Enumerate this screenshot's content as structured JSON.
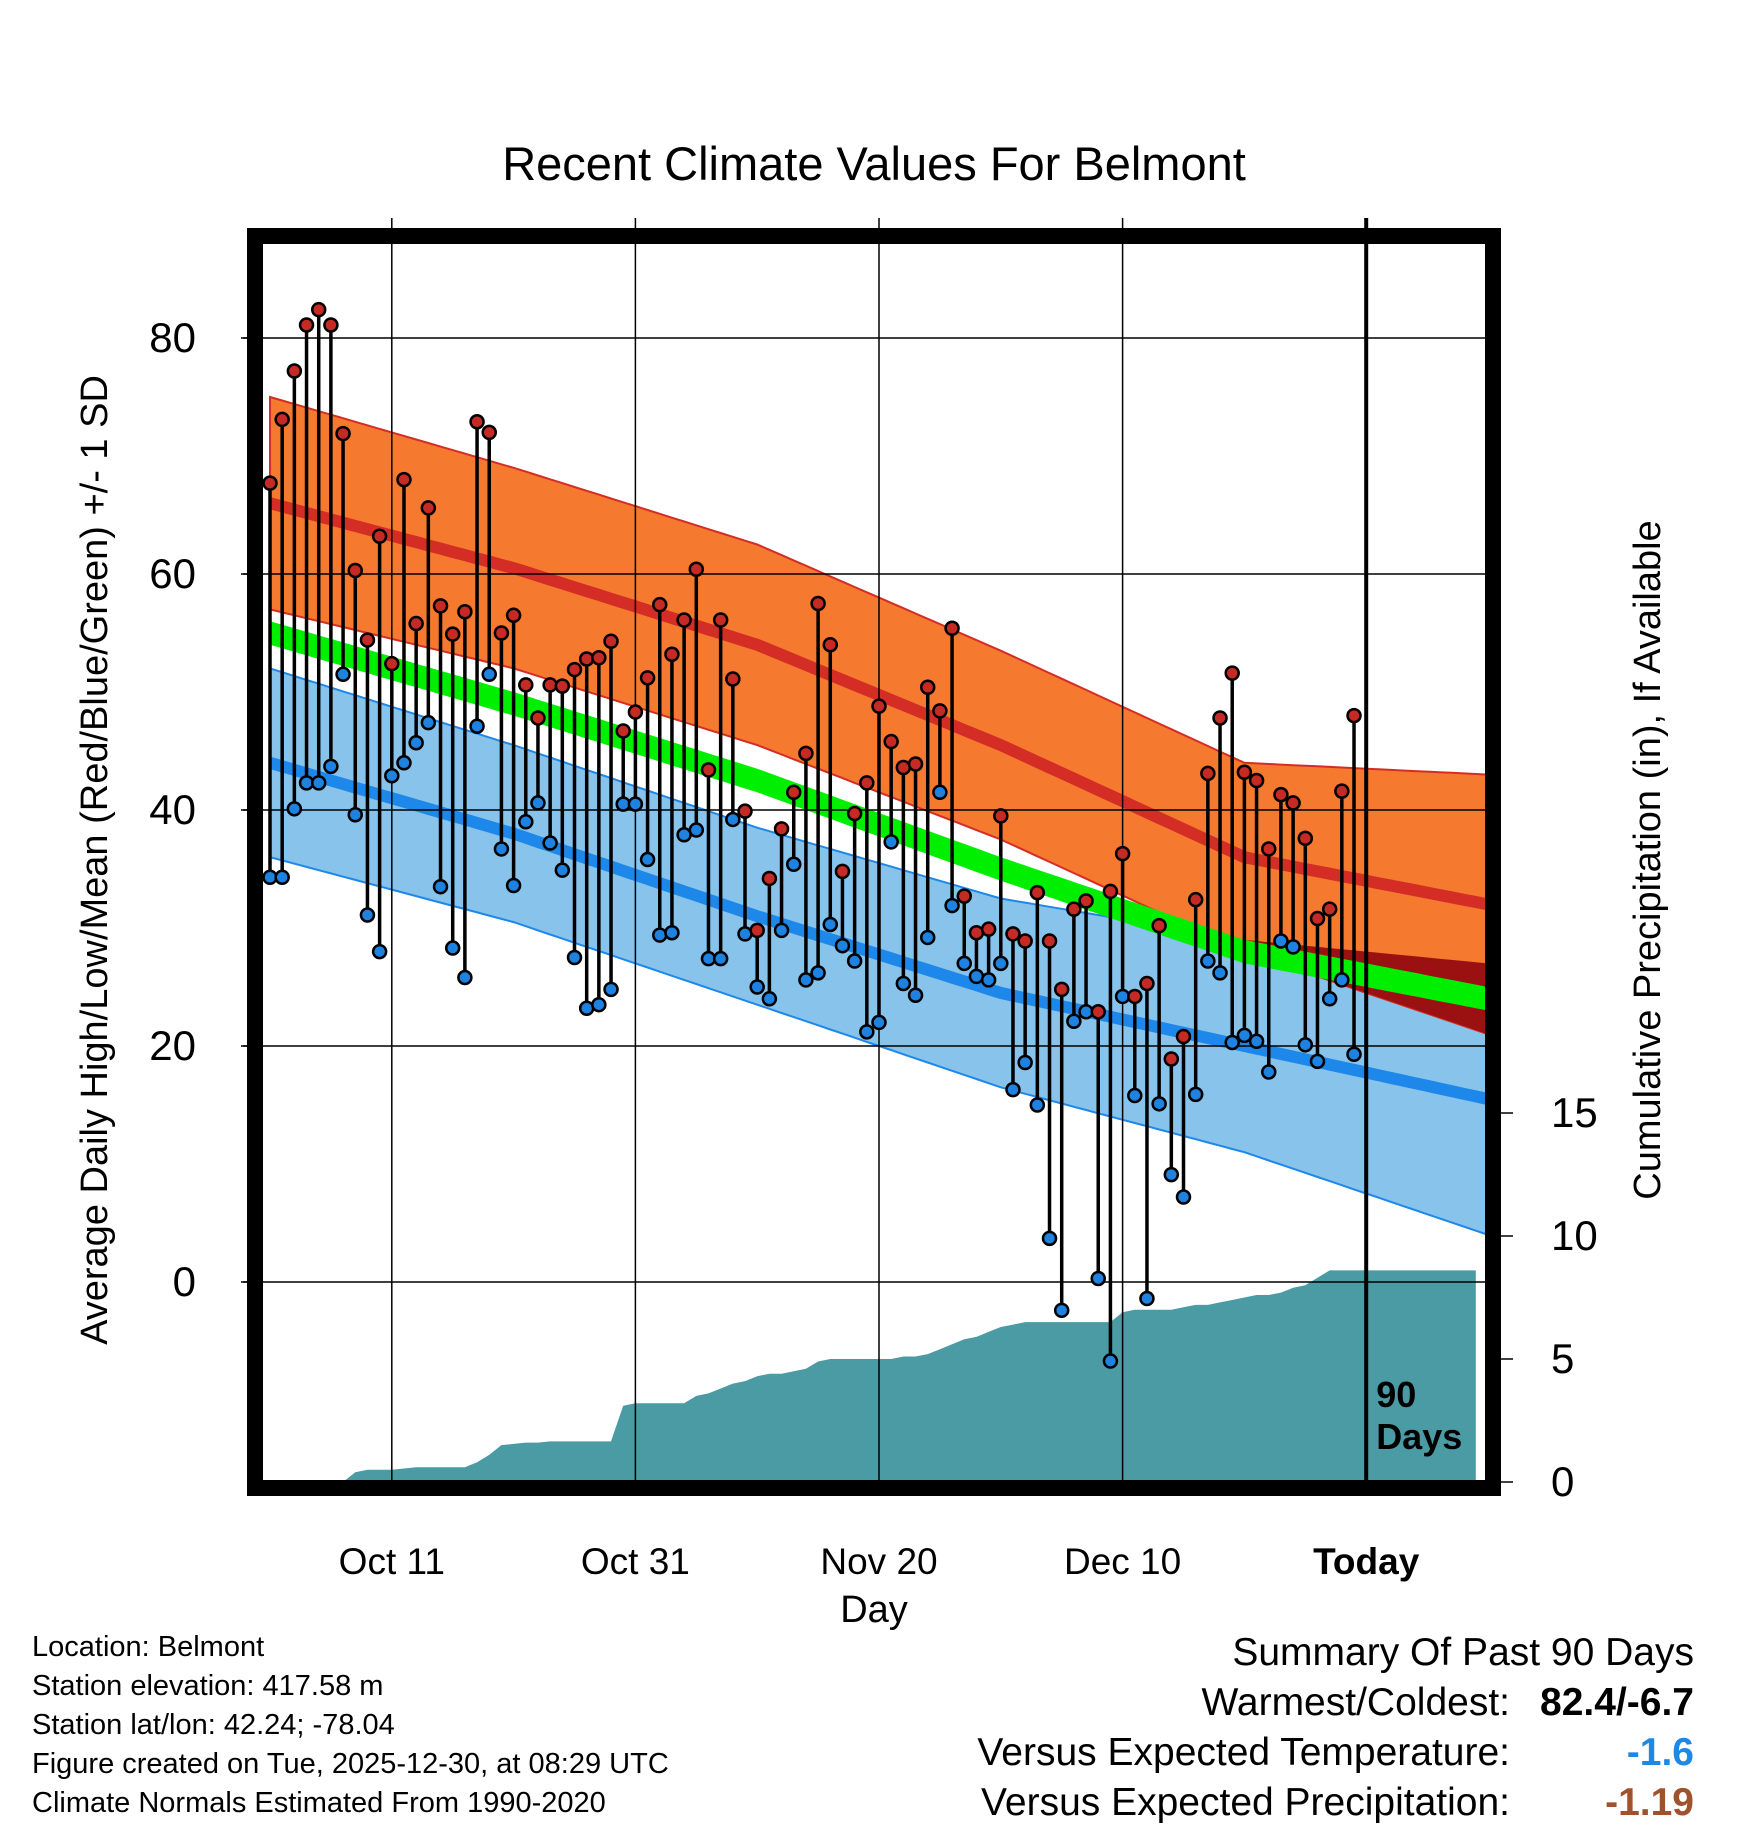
{
  "title": "Recent Climate Values For Belmont",
  "chart_data": {
    "type": "line",
    "title": "Recent Climate Values For Belmont",
    "xlabel": "Day",
    "ylabel_left": "Average Daily High/Low/Mean (Red/Blue/Green) +/- 1 SD",
    "ylabel_right": "Cumulative Precipitation (in), If Available",
    "x_tick_labels": [
      "Oct 11",
      "Oct 31",
      "Nov 20",
      "Dec 10",
      "Today"
    ],
    "x_tick_days": [
      10,
      30,
      50,
      70,
      90
    ],
    "y_left_ticks": [
      0,
      20,
      40,
      60,
      80
    ],
    "y_right_ticks": [
      0,
      5,
      10,
      15
    ],
    "xlim_days": [
      0,
      100
    ],
    "ylim_left": [
      -16,
      88
    ],
    "today_label": "90\nDays",
    "grid": true,
    "colors": {
      "high_band": "#f5792e",
      "high_mean": "#d42d26",
      "low_band": "#87c3ea",
      "low_mean": "#1e88ea",
      "mean_band": "#00ee00",
      "overlap": "#9b1010",
      "precip": "#4a9ba4",
      "max_dot": "#c62a25",
      "min_dot": "#1e82e0"
    },
    "normals": {
      "days": [
        0,
        20,
        40,
        60,
        80,
        100
      ],
      "high_mean": [
        66,
        60.5,
        54,
        45.5,
        36,
        32
      ],
      "high_sd": [
        9,
        8.5,
        8.5,
        8,
        8,
        11
      ],
      "low_mean": [
        44,
        38,
        31,
        24.5,
        20,
        15.5
      ],
      "low_sd": [
        8,
        7.5,
        7.5,
        8,
        9,
        11.5
      ],
      "mean_mean": [
        55,
        49,
        42.5,
        35,
        28,
        24
      ],
      "mean_sd": [
        1,
        1,
        1,
        1,
        1,
        1
      ]
    },
    "series": [
      {
        "name": "Daily High",
        "days": [
          0,
          1,
          2,
          3,
          4,
          5,
          6,
          7,
          8,
          9,
          10,
          11,
          12,
          13,
          14,
          15,
          16,
          17,
          18,
          19,
          20,
          21,
          22,
          23,
          24,
          25,
          26,
          27,
          28,
          29,
          30,
          31,
          32,
          33,
          34,
          35,
          36,
          37,
          38,
          39,
          40,
          41,
          42,
          43,
          44,
          45,
          46,
          47,
          48,
          49,
          50,
          51,
          52,
          53,
          54,
          55,
          56,
          57,
          58,
          59,
          60,
          61,
          62,
          63,
          64,
          65,
          66,
          67,
          68,
          69,
          70,
          71,
          72,
          73,
          74,
          75,
          76,
          77,
          78,
          79,
          80,
          81,
          82,
          83,
          84,
          85,
          86,
          87,
          88,
          89
        ],
        "values": [
          67.7,
          73.1,
          77.2,
          81.1,
          82.4,
          81.1,
          71.9,
          60.3,
          54.4,
          63.2,
          52.4,
          68.0,
          55.8,
          65.6,
          57.3,
          54.9,
          56.8,
          72.9,
          72.0,
          55.0,
          56.5,
          50.6,
          47.8,
          50.6,
          50.5,
          51.9,
          52.8,
          52.9,
          54.3,
          46.7,
          48.3,
          51.2,
          57.4,
          53.2,
          56.1,
          60.4,
          43.4,
          56.1,
          51.1,
          39.9,
          29.8,
          34.2,
          38.4,
          41.5,
          44.8,
          57.5,
          54.0,
          34.8,
          39.7,
          42.3,
          48.8,
          45.8,
          43.6,
          43.9,
          50.4,
          48.4,
          55.4,
          32.7,
          29.6,
          29.9,
          39.5,
          29.5,
          28.9,
          33.0,
          28.9,
          24.8,
          31.6,
          32.3,
          22.9,
          33.1,
          36.3,
          24.2,
          25.3,
          30.2,
          18.9,
          20.8,
          32.4,
          43.1,
          47.8,
          51.6,
          43.2,
          42.5,
          36.7,
          41.3,
          40.6,
          37.6,
          30.8,
          31.6,
          41.6,
          48.0
        ]
      },
      {
        "name": "Daily Low",
        "days": [
          0,
          1,
          2,
          3,
          4,
          5,
          6,
          7,
          8,
          9,
          10,
          11,
          12,
          13,
          14,
          15,
          16,
          17,
          18,
          19,
          20,
          21,
          22,
          23,
          24,
          25,
          26,
          27,
          28,
          29,
          30,
          31,
          32,
          33,
          34,
          35,
          36,
          37,
          38,
          39,
          40,
          41,
          42,
          43,
          44,
          45,
          46,
          47,
          48,
          49,
          50,
          51,
          52,
          53,
          54,
          55,
          56,
          57,
          58,
          59,
          60,
          61,
          62,
          63,
          64,
          65,
          66,
          67,
          68,
          69,
          70,
          71,
          72,
          73,
          74,
          75,
          76,
          77,
          78,
          79,
          80,
          81,
          82,
          83,
          84,
          85,
          86,
          87,
          88,
          89
        ],
        "values": [
          34.3,
          34.3,
          40.1,
          42.3,
          42.3,
          43.7,
          51.5,
          39.6,
          31.1,
          28.0,
          42.9,
          44.0,
          45.7,
          47.4,
          33.5,
          28.3,
          25.8,
          47.1,
          51.5,
          36.7,
          33.6,
          39.0,
          40.6,
          37.2,
          34.9,
          27.5,
          23.2,
          23.5,
          24.8,
          40.5,
          40.5,
          35.8,
          29.4,
          29.6,
          37.9,
          38.3,
          27.4,
          27.4,
          39.2,
          29.5,
          25.0,
          24.0,
          29.8,
          35.4,
          25.6,
          26.2,
          30.3,
          28.5,
          27.2,
          21.2,
          22.0,
          37.3,
          25.3,
          24.3,
          29.2,
          41.5,
          31.9,
          27.0,
          25.9,
          25.6,
          27.0,
          16.3,
          18.6,
          15.0,
          3.7,
          -2.4,
          22.1,
          22.9,
          0.3,
          -6.7,
          24.2,
          15.8,
          -1.4,
          15.1,
          9.1,
          7.2,
          15.9,
          27.2,
          26.2,
          20.3,
          20.9,
          20.4,
          17.8,
          28.9,
          28.4,
          20.1,
          18.7,
          24.0,
          25.6,
          19.3
        ]
      },
      {
        "name": "Cumulative Precipitation",
        "days": [
          6,
          7,
          8,
          9,
          10,
          11,
          12,
          13,
          14,
          15,
          16,
          17,
          18,
          19,
          20,
          21,
          22,
          23,
          24,
          25,
          26,
          27,
          28,
          29,
          30,
          31,
          32,
          33,
          34,
          35,
          36,
          37,
          38,
          39,
          40,
          41,
          42,
          43,
          44,
          45,
          46,
          47,
          48,
          49,
          50,
          51,
          52,
          53,
          54,
          55,
          56,
          57,
          58,
          59,
          60,
          61,
          62,
          63,
          64,
          65,
          66,
          67,
          68,
          69,
          70,
          71,
          72,
          73,
          74,
          75,
          76,
          77,
          78,
          79,
          80,
          81,
          82,
          83,
          84,
          85,
          86,
          87,
          88,
          89,
          90,
          99
        ],
        "values": [
          0,
          0.4,
          0.5,
          0.5,
          0.5,
          0.55,
          0.6,
          0.6,
          0.6,
          0.6,
          0.6,
          0.8,
          1.1,
          1.5,
          1.55,
          1.6,
          1.6,
          1.65,
          1.65,
          1.65,
          1.65,
          1.65,
          1.65,
          3.1,
          3.2,
          3.2,
          3.2,
          3.2,
          3.2,
          3.5,
          3.6,
          3.8,
          4.0,
          4.1,
          4.3,
          4.4,
          4.4,
          4.5,
          4.6,
          4.9,
          5.0,
          5.0,
          5.0,
          5.0,
          5.0,
          5.0,
          5.1,
          5.1,
          5.2,
          5.4,
          5.6,
          5.8,
          5.9,
          6.1,
          6.3,
          6.4,
          6.5,
          6.5,
          6.5,
          6.5,
          6.5,
          6.5,
          6.5,
          6.5,
          6.9,
          7.0,
          7.0,
          7.0,
          7.0,
          7.1,
          7.2,
          7.2,
          7.3,
          7.4,
          7.5,
          7.6,
          7.6,
          7.7,
          7.9,
          8.0,
          8.3,
          8.6,
          8.6,
          8.6,
          8.6,
          8.6
        ]
      }
    ]
  },
  "info": {
    "location": "Location: Belmont",
    "elevation": "Station elevation: 417.58 m",
    "latlon": "Station lat/lon: 42.24; -78.04",
    "created": "Figure created on Tue, 2025-12-30, at 08:29 UTC",
    "normals": "Climate Normals Estimated From 1990-2020"
  },
  "summary": {
    "heading": "Summary Of Past 90 Days",
    "warmest_label": "Warmest/Coldest:",
    "warmest_value": "82.4/-6.7",
    "temp_label": "Versus Expected Temperature:",
    "temp_value": "-1.6",
    "temp_color": "#1e88e5",
    "precip_label": "Versus Expected Precipitation:",
    "precip_value": "-1.19",
    "precip_color": "#a0522d"
  }
}
